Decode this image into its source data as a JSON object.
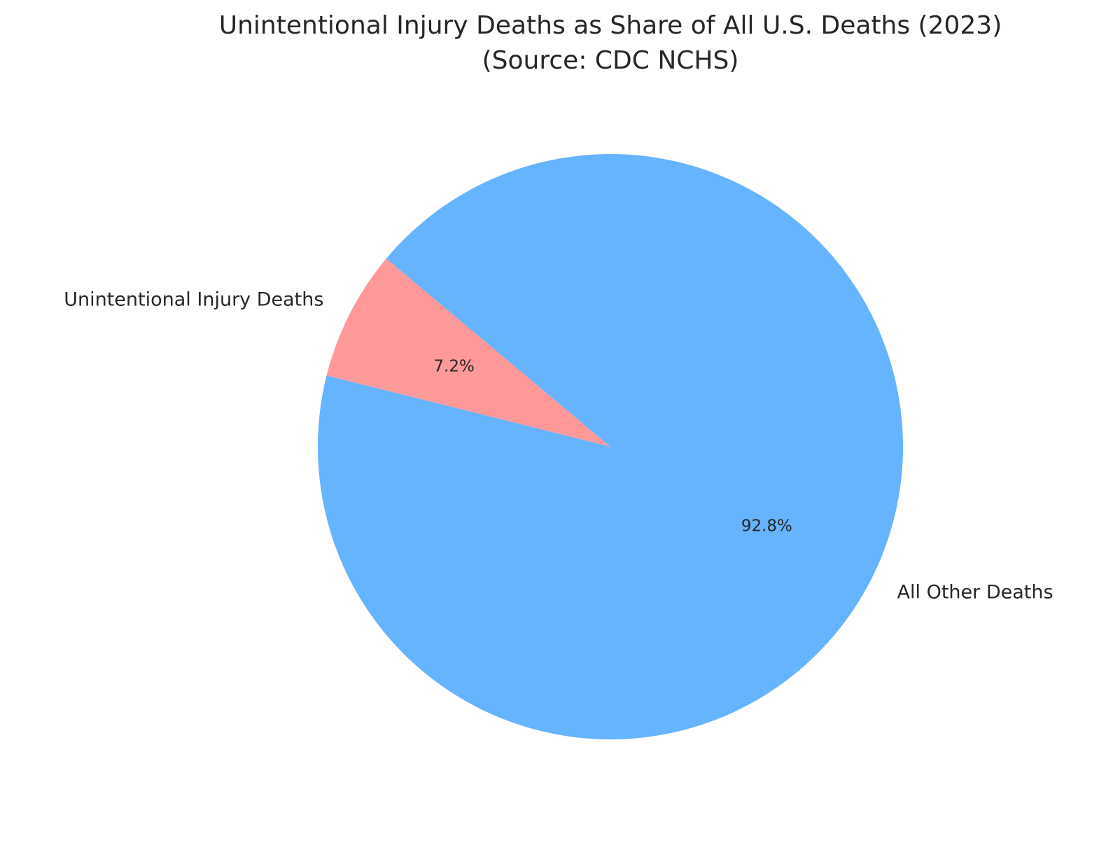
{
  "chart_data": {
    "type": "pie",
    "title": "Unintentional Injury Deaths as Share of All U.S. Deaths (2023)",
    "subtitle": "(Source: CDC NCHS)",
    "categories": [
      "Unintentional Injury Deaths",
      "All Other Deaths"
    ],
    "values": [
      7.2,
      92.8
    ],
    "value_labels": [
      "7.2%",
      "92.8%"
    ],
    "colors": [
      "#ff9999",
      "#66b3ff"
    ]
  }
}
